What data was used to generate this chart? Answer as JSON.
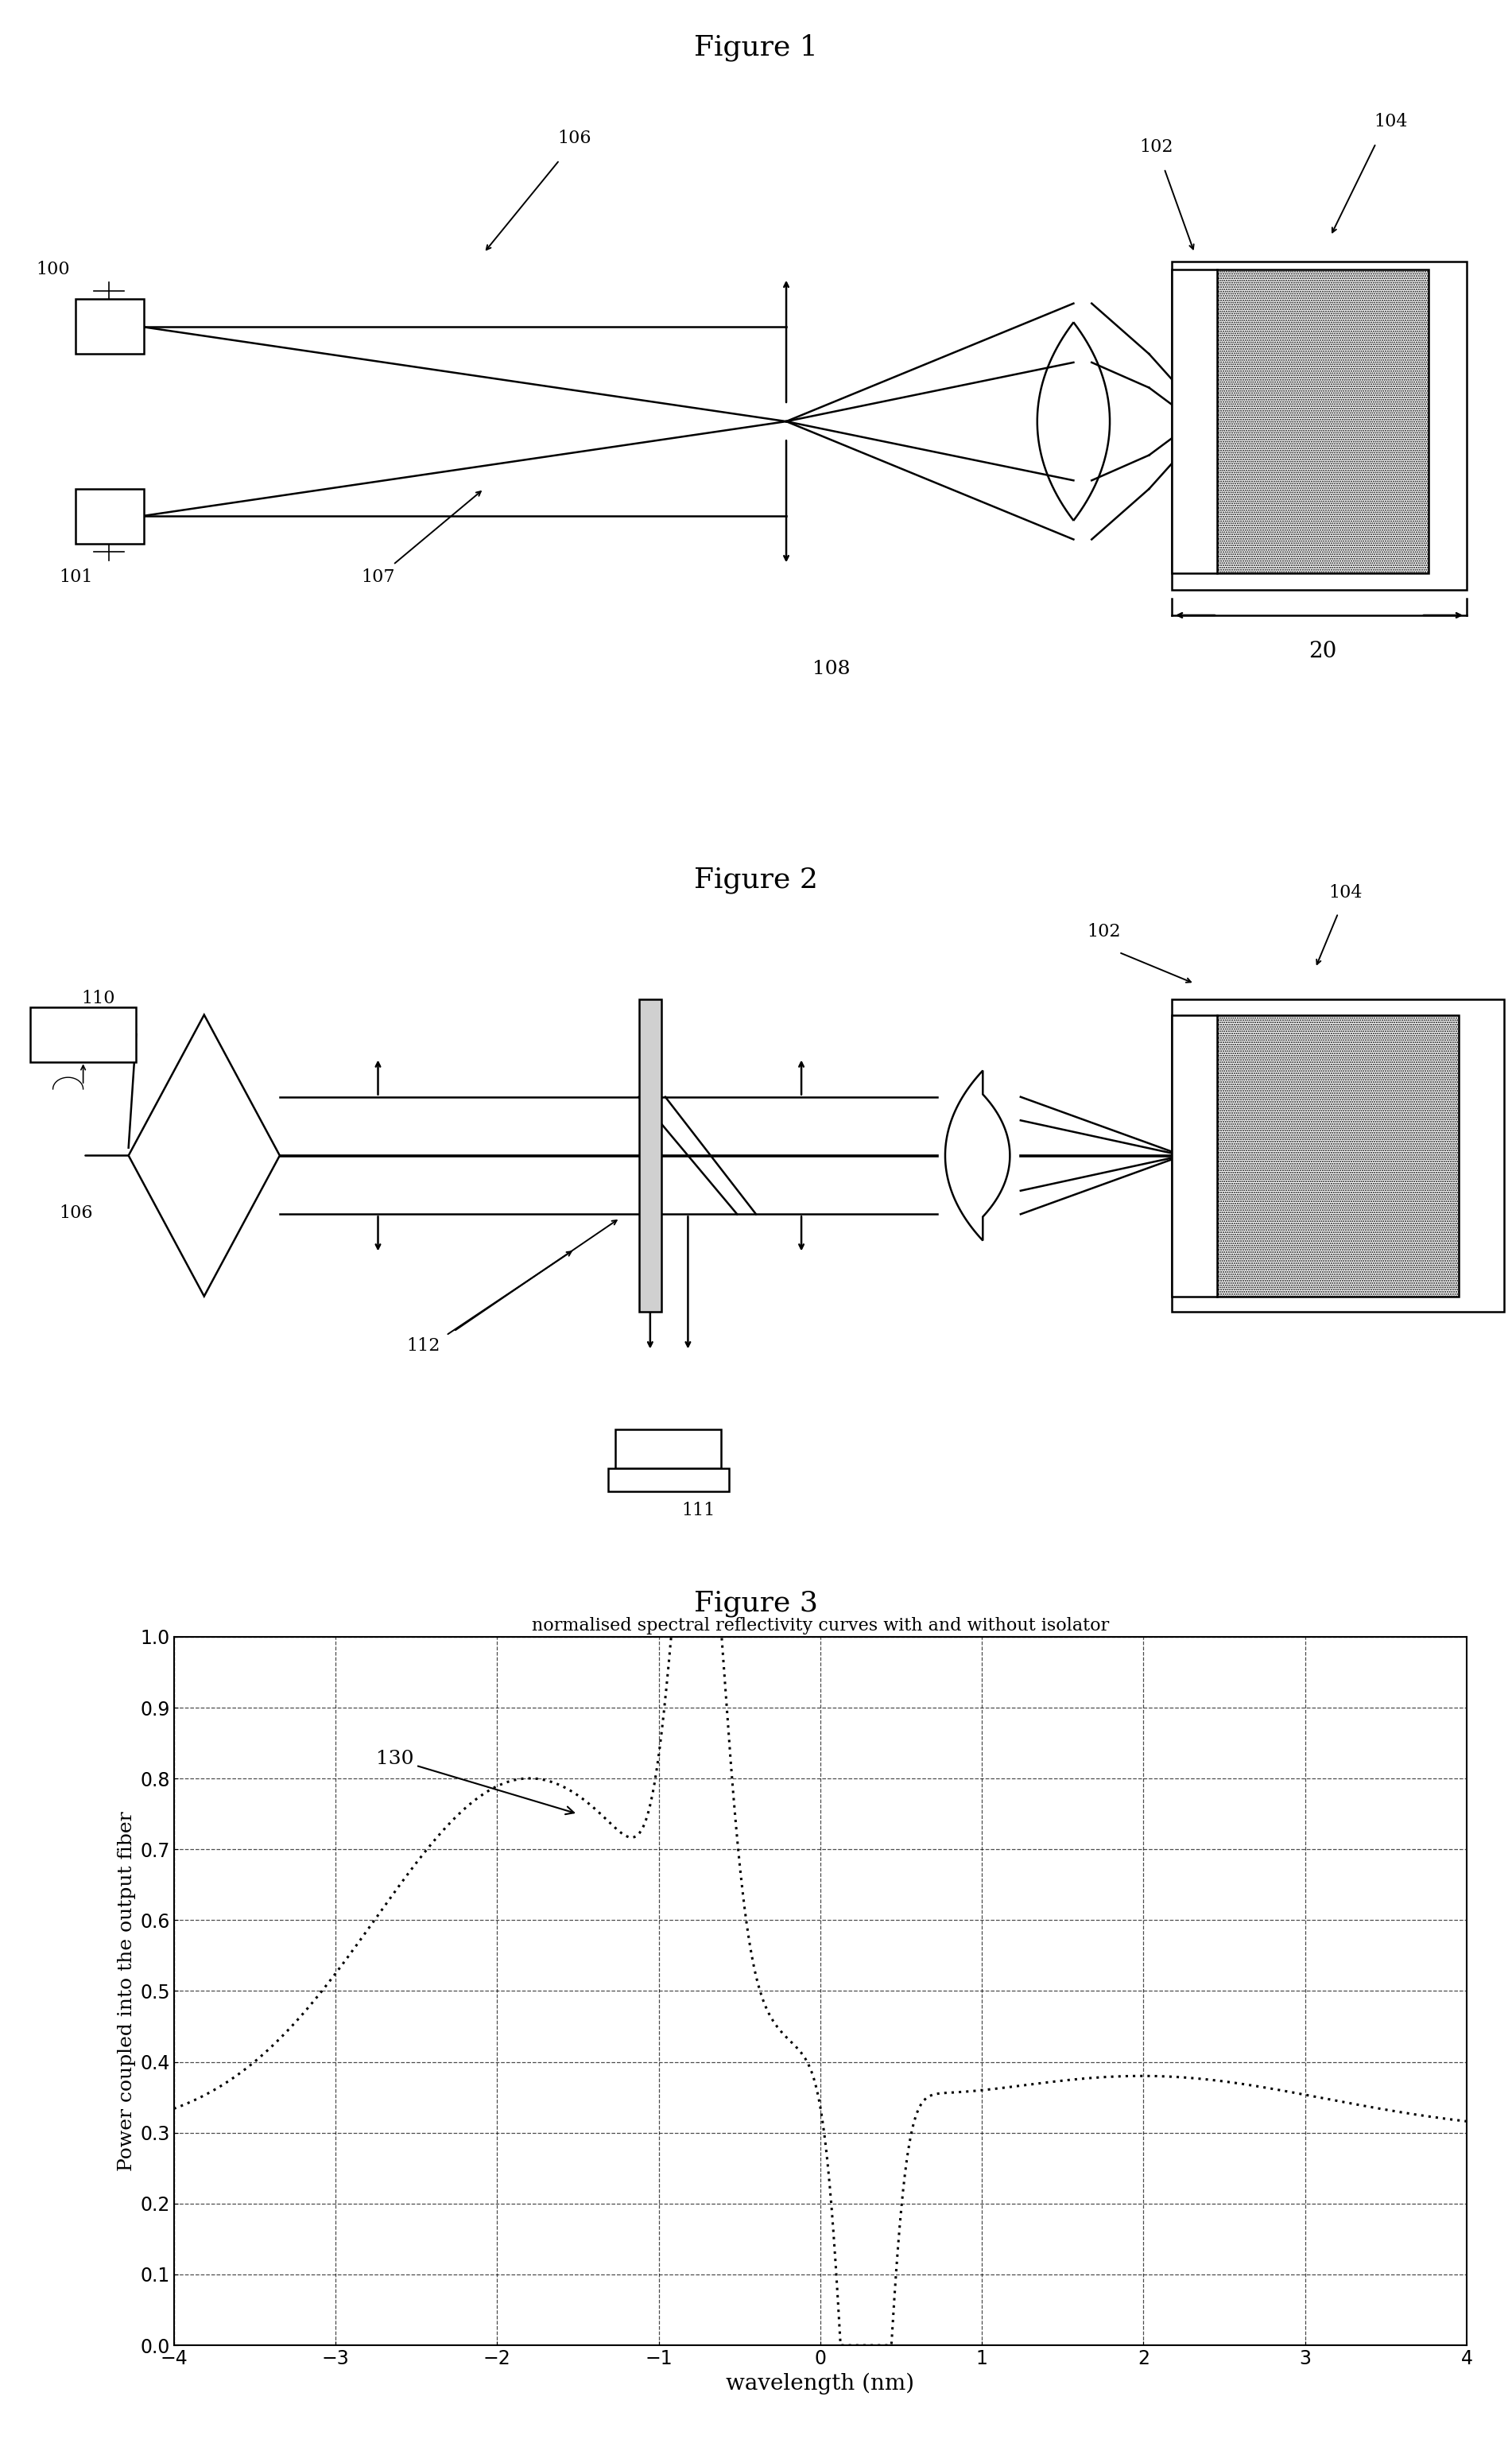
{
  "fig1_title": "Figure 1",
  "fig2_title": "Figure 2",
  "fig3_title": "Figure 3",
  "fig3_plot_title": "normalised spectral reflectivity curves with and without isolator",
  "fig3_xlabel": "wavelength (nm)",
  "fig3_ylabel": "Power coupled into the output fiber",
  "fig3_xlim": [
    -4,
    4
  ],
  "fig3_ylim": [
    0,
    1
  ],
  "fig3_xticks": [
    -4,
    -3,
    -2,
    -1,
    0,
    1,
    2,
    3,
    4
  ],
  "fig3_yticks": [
    0,
    0.1,
    0.2,
    0.3,
    0.4,
    0.5,
    0.6,
    0.7,
    0.8,
    0.9,
    1
  ],
  "bg_color": "#ffffff",
  "line_color": "#000000"
}
